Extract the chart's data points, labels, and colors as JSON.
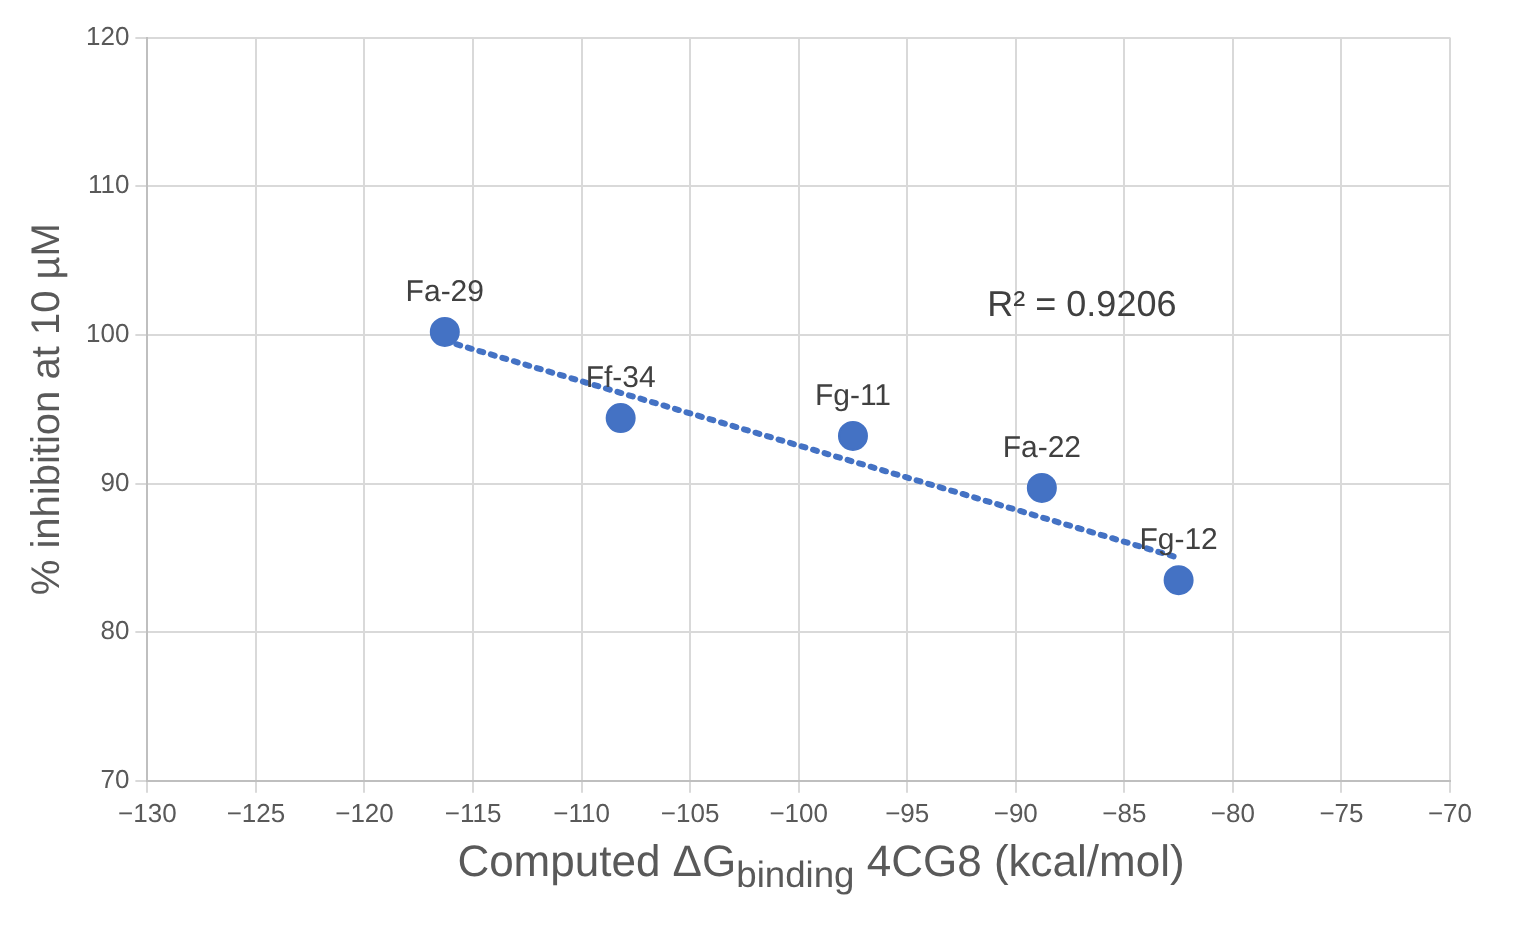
{
  "chart_data": {
    "type": "scatter",
    "xlabel": "Computed ΔG$_{binding}$ 4CG8 (kcal/mol)",
    "ylabel": "% inhibition at 10 µM",
    "xlim": [
      -130,
      -70
    ],
    "xticks": [
      {
        "value": -130,
        "label": "−130"
      },
      {
        "value": -125,
        "label": "−125"
      },
      {
        "value": -120,
        "label": "−120"
      },
      {
        "value": -115,
        "label": "−115"
      },
      {
        "value": -110,
        "label": "−110"
      },
      {
        "value": -105,
        "label": "−105"
      },
      {
        "value": -100,
        "label": "−100"
      },
      {
        "value": -95,
        "label": "−95"
      },
      {
        "value": -90,
        "label": "−90"
      },
      {
        "value": -85,
        "label": "−85"
      },
      {
        "value": -80,
        "label": "−80"
      },
      {
        "value": -75,
        "label": "−75"
      },
      {
        "value": -70,
        "label": "−70"
      }
    ],
    "ylim": [
      70,
      120
    ],
    "yticks": [
      70,
      80,
      90,
      100,
      110,
      120
    ],
    "grid": true,
    "legend": false,
    "series": [
      {
        "type": "scatter",
        "color": "#4472c4",
        "marker": "circle",
        "x": [
          -116.3,
          -108.2,
          -97.5,
          -88.8,
          -82.5
        ],
        "values": [
          100.2,
          94.4,
          93.2,
          89.7,
          83.5
        ]
      },
      {
        "type": "line",
        "color": "#4472c4",
        "marker": "none",
        "line_style": "dotted",
        "x": [
          -116.3,
          -82.5
        ],
        "values": [
          99.6,
          85.0
        ]
      }
    ],
    "annotations": [
      {
        "text": "Fa-29",
        "x": -116.3,
        "y": 100.2
      },
      {
        "text": "Ff-34",
        "x": -108.2,
        "y": 94.4
      },
      {
        "text": "Fg-11",
        "x": -97.5,
        "y": 93.2
      },
      {
        "text": "Fa-22",
        "x": -88.8,
        "y": 89.7
      },
      {
        "text": "Fg-12",
        "x": -82.5,
        "y": 83.5
      },
      "R² = 0.9206"
    ]
  }
}
